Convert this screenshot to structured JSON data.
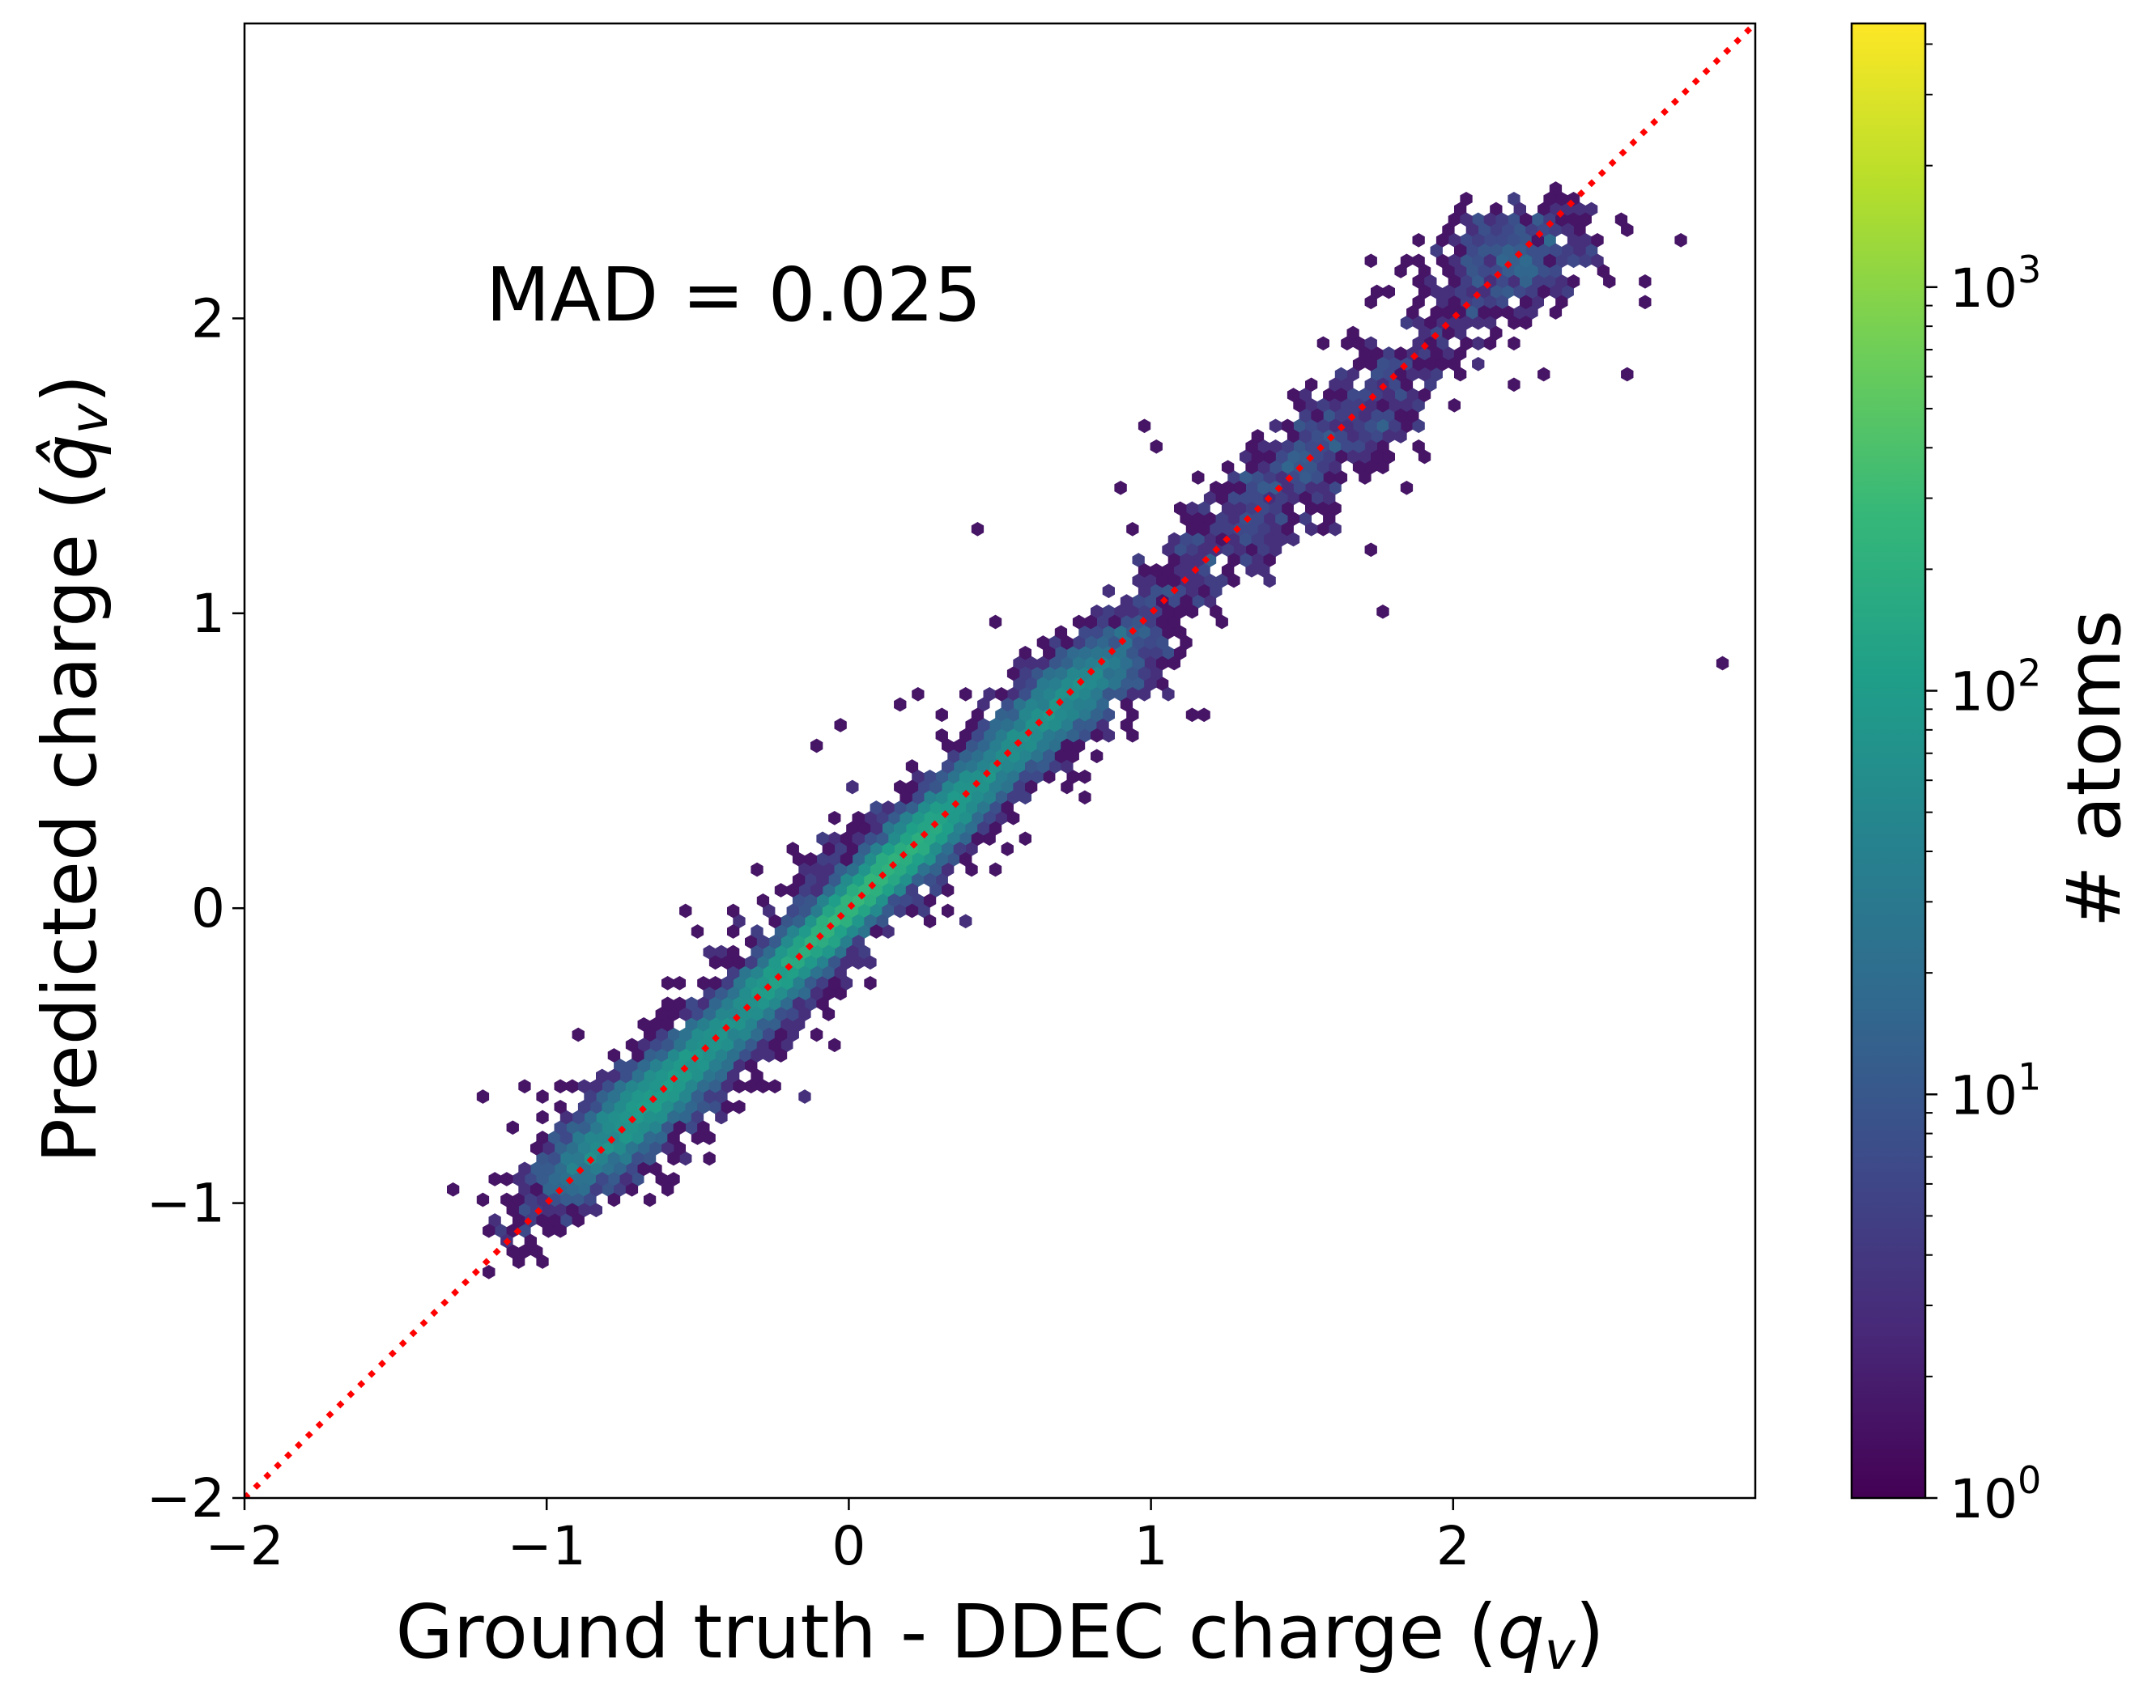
{
  "chart_data": {
    "type": "scatter",
    "plot_kind": "hexbin density",
    "title": "",
    "xlabel": "Ground truth - DDEC charge (",
    "xlabel_var": "q",
    "xlabel_sub": "v",
    "xlabel_end": ")",
    "ylabel": "Predicted  charge (",
    "ylabel_var": "q̂",
    "ylabel_sub": "v",
    "ylabel_end": ")",
    "xlim": [
      -2,
      3
    ],
    "ylim": [
      -2,
      3
    ],
    "x_ticks": [
      -2,
      -1,
      0,
      1,
      2
    ],
    "y_ticks": [
      -2,
      -1,
      0,
      1,
      2
    ],
    "x_tick_labels": [
      "−2",
      "−1",
      "0",
      "1",
      "2"
    ],
    "y_tick_labels": [
      "−2",
      "−1",
      "0",
      "1",
      "2"
    ],
    "annotation": "MAD = 0.025",
    "reference_line": {
      "style": "dotted",
      "color": "#ff0000",
      "x": [
        -2,
        3
      ],
      "y": [
        -2,
        3
      ]
    },
    "colorbar": {
      "label": "# atoms",
      "scale": "log",
      "range": [
        1,
        4500
      ],
      "tick_values": [
        1,
        10,
        100,
        1000
      ],
      "tick_bases": [
        "10",
        "10",
        "10",
        "10"
      ],
      "tick_exponents": [
        "0",
        "1",
        "2",
        "3"
      ],
      "colormap": "viridis"
    },
    "grid": false,
    "outliers": [
      [
        2.74,
        2.27
      ],
      [
        2.65,
        2.05
      ],
      [
        2.58,
        1.81
      ],
      [
        2.88,
        0.84
      ],
      [
        2.44,
        2.28
      ],
      [
        1.72,
        1.23
      ],
      [
        1.61,
        1.29
      ],
      [
        0.44,
        1.28
      ],
      [
        0.96,
        1.63
      ],
      [
        0.4,
        -0.05
      ],
      [
        0.8,
        0.38
      ],
      [
        0.93,
        0.57
      ],
      [
        -0.09,
        0.54
      ],
      [
        1.3,
        1.54
      ],
      [
        2.07,
        2.16
      ],
      [
        -1.32,
        -0.95
      ],
      [
        -1.18,
        -1.22
      ],
      [
        -0.93,
        -0.83
      ],
      [
        -0.55,
        -0.6
      ],
      [
        -0.02,
        0.62
      ]
    ]
  },
  "colors": {
    "reference_line": "#ff0000",
    "viridis": [
      "#440154",
      "#482878",
      "#3e4989",
      "#31688e",
      "#26828e",
      "#1f9e89",
      "#35b779",
      "#6ece58",
      "#b5de2b",
      "#fde725"
    ]
  }
}
